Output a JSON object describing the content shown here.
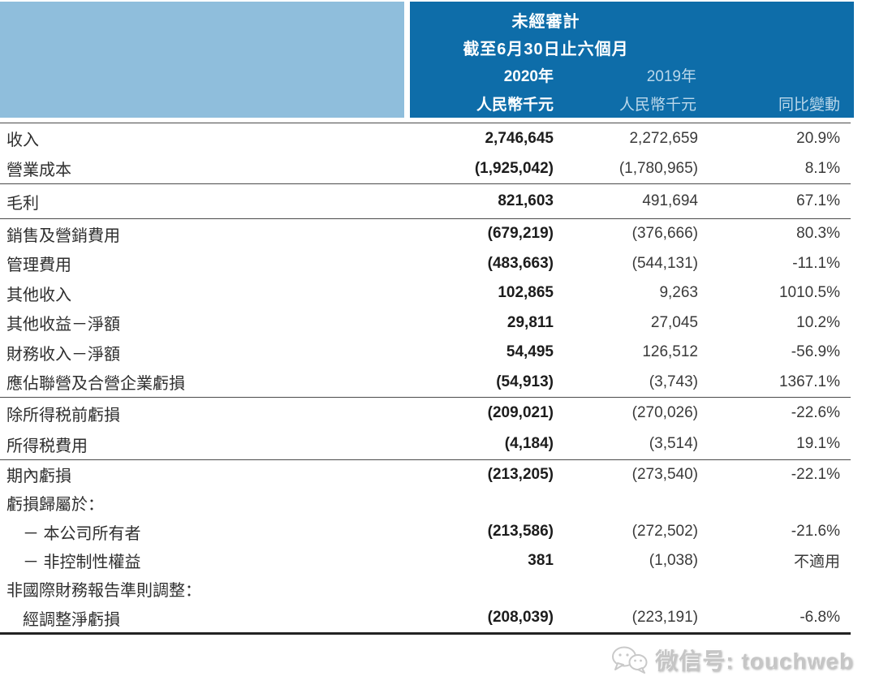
{
  "header": {
    "audit_status": "未經審計",
    "period": "截至6月30日止六個月",
    "col_2020": {
      "year": "2020年",
      "unit": "人民幣千元"
    },
    "col_2019": {
      "year": "2019年",
      "unit": "人民幣千元"
    },
    "col_change": "同比變動",
    "colors": {
      "light_block": "#8FBEDC",
      "dark_block": "#0E6DA9",
      "light_text": "#BBD8EB"
    }
  },
  "table": {
    "sections": [
      {
        "rows": [
          {
            "label": "收入",
            "v2020": "2,746,645",
            "v2019": "2,272,659",
            "change": "20.9%"
          },
          {
            "label": "營業成本",
            "v2020": "(1,925,042)",
            "v2019": "(1,780,965)",
            "change": "8.1%"
          }
        ]
      },
      {
        "rows": [
          {
            "label": "毛利",
            "v2020": "821,603",
            "v2019": "491,694",
            "change": "67.1%"
          }
        ]
      },
      {
        "rows": [
          {
            "label": "銷售及營銷費用",
            "v2020": "(679,219)",
            "v2019": "(376,666)",
            "change": "80.3%"
          },
          {
            "label": "管理費用",
            "v2020": "(483,663)",
            "v2019": "(544,131)",
            "change": "-11.1%"
          },
          {
            "label": "其他收入",
            "v2020": "102,865",
            "v2019": "9,263",
            "change": "1010.5%"
          },
          {
            "label": "其他收益－淨額",
            "v2020": "29,811",
            "v2019": "27,045",
            "change": "10.2%"
          },
          {
            "label": "財務收入－淨額",
            "v2020": "54,495",
            "v2019": "126,512",
            "change": "-56.9%"
          },
          {
            "label": "應佔聯營及合營企業虧損",
            "v2020": "(54,913)",
            "v2019": "(3,743)",
            "change": "1367.1%"
          }
        ]
      },
      {
        "rows": [
          {
            "label": "除所得税前虧損",
            "v2020": "(209,021)",
            "v2019": "(270,026)",
            "change": "-22.6%"
          },
          {
            "label": "所得税費用",
            "v2020": "(4,184)",
            "v2019": "(3,514)",
            "change": "19.1%"
          }
        ]
      },
      {
        "thick_bottom": true,
        "rows": [
          {
            "label": "期內虧損",
            "v2020": "(213,205)",
            "v2019": "(273,540)",
            "change": "-22.1%"
          },
          {
            "label": "虧損歸屬於：",
            "v2020": "",
            "v2019": "",
            "change": ""
          },
          {
            "label": "－ 本公司所有者",
            "indent": true,
            "v2020": "(213,586)",
            "v2019": "(272,502)",
            "change": "-21.6%"
          },
          {
            "label": "－ 非控制性權益",
            "indent": true,
            "v2020": "381",
            "v2019": "(1,038)",
            "change": "不適用"
          },
          {
            "label": "非國際財務報告準則調整：",
            "v2020": "",
            "v2019": "",
            "change": ""
          },
          {
            "label": "經調整淨虧損",
            "indent": true,
            "v2020": "(208,039)",
            "v2019": "(223,191)",
            "change": "-6.8%"
          }
        ]
      }
    ]
  },
  "watermark": {
    "text": "微信号: touchweb",
    "icon": "wechat-icon"
  }
}
